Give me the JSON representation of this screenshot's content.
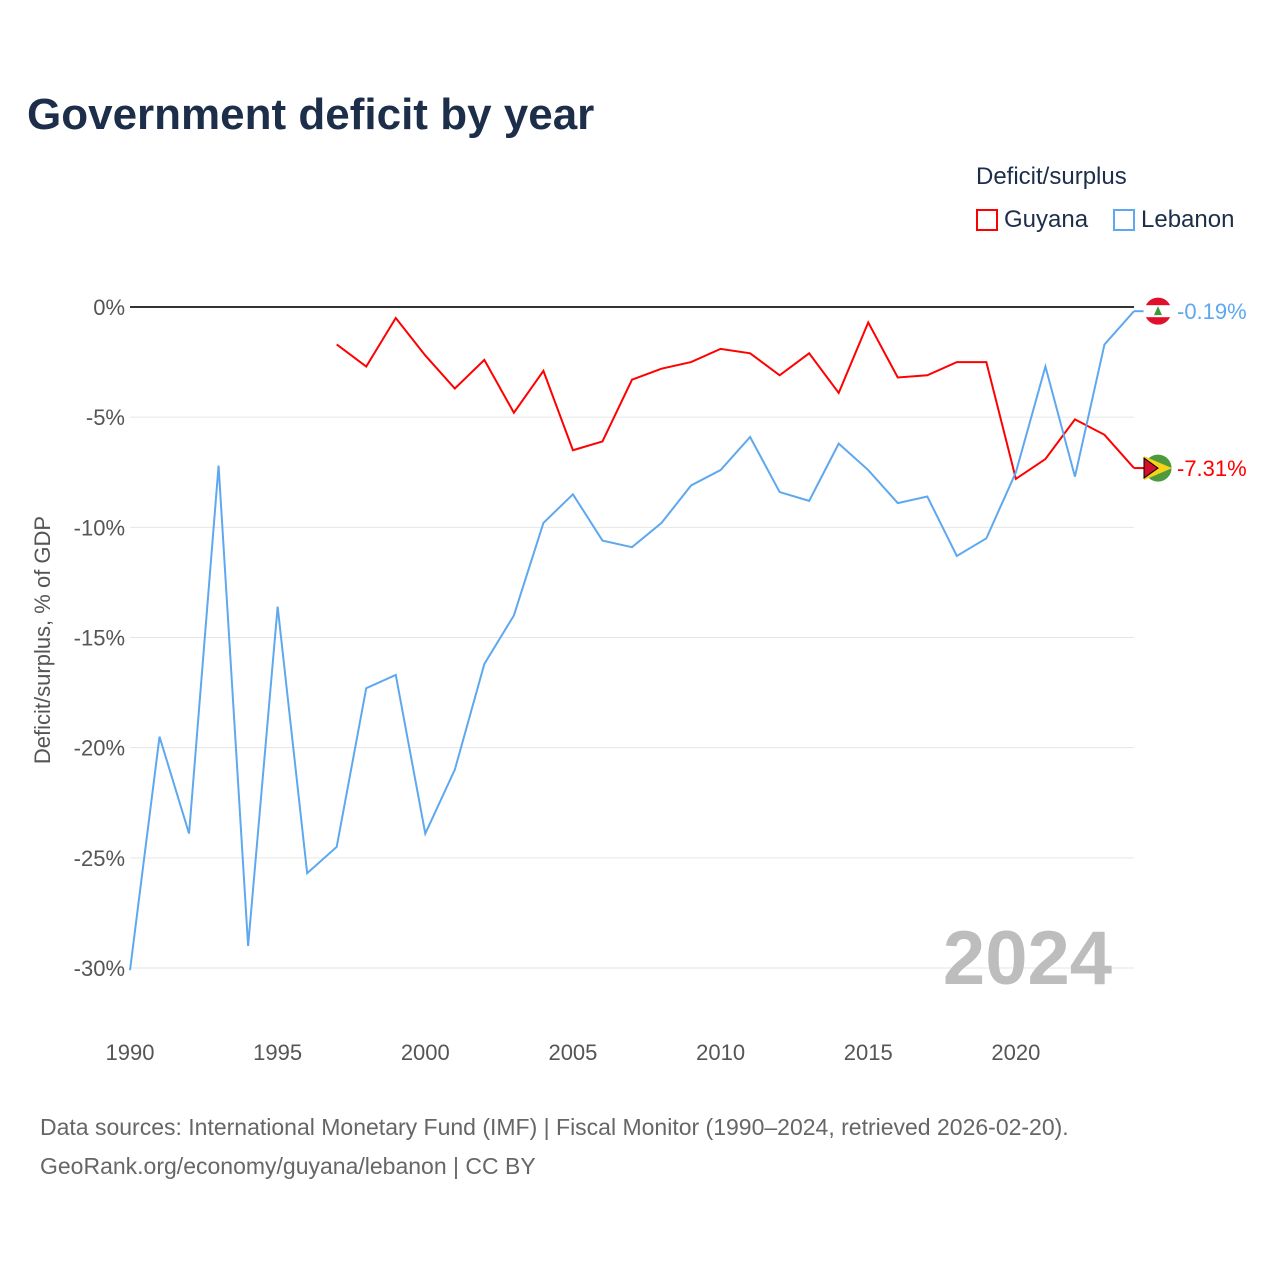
{
  "title": "Government deficit by year",
  "legend": {
    "title": "Deficit/surplus",
    "items": [
      "Guyana",
      "Lebanon"
    ]
  },
  "source": {
    "line1": "Data sources: International Monetary Fund (IMF) | Fiscal Monitor (1990–2024, retrieved 2026-02-20).",
    "line2": "GeoRank.org/economy/guyana/lebanon | CC BY"
  },
  "year_label": "2024",
  "chart_data": {
    "type": "line",
    "title": "Government deficit by year",
    "ylabel": "Deficit/surplus, % of GDP",
    "xlabel": "",
    "xlim": [
      1990,
      2024
    ],
    "ylim": [
      -30,
      0
    ],
    "xticks": [
      1990,
      1995,
      2000,
      2005,
      2010,
      2015,
      2020
    ],
    "yticks": [
      0,
      -5,
      -10,
      -15,
      -20,
      -25,
      -30
    ],
    "ytick_labels": [
      "0%",
      "-5%",
      "-10%",
      "-15%",
      "-20%",
      "-25%",
      "-30%"
    ],
    "series": [
      {
        "name": "Guyana",
        "color": "#ff0000",
        "end_label": "-7.31%",
        "x": [
          1997,
          1998,
          1999,
          2000,
          2001,
          2002,
          2003,
          2004,
          2005,
          2006,
          2007,
          2008,
          2009,
          2010,
          2011,
          2012,
          2013,
          2014,
          2015,
          2016,
          2017,
          2018,
          2019,
          2020,
          2021,
          2022,
          2023,
          2024
        ],
        "values": [
          -1.7,
          -2.7,
          -0.5,
          -2.2,
          -3.7,
          -2.4,
          -4.8,
          -2.9,
          -6.5,
          -6.1,
          -3.3,
          -2.8,
          -2.5,
          -1.9,
          -2.1,
          -3.1,
          -2.1,
          -3.9,
          -0.7,
          -3.2,
          -3.1,
          -2.5,
          -2.5,
          -7.8,
          -6.9,
          -5.1,
          -5.8,
          -7.31
        ]
      },
      {
        "name": "Lebanon",
        "color": "#5ea8ef",
        "end_label": "-0.19%",
        "x": [
          1990,
          1991,
          1992,
          1993,
          1994,
          1995,
          1996,
          1997,
          1998,
          1999,
          2000,
          2001,
          2002,
          2003,
          2004,
          2005,
          2006,
          2007,
          2008,
          2009,
          2010,
          2011,
          2012,
          2013,
          2014,
          2015,
          2016,
          2017,
          2018,
          2019,
          2020,
          2021,
          2022,
          2023,
          2024
        ],
        "values": [
          -30.1,
          -19.5,
          -23.9,
          -7.2,
          -29.0,
          -13.6,
          -25.7,
          -24.5,
          -17.3,
          -16.7,
          -23.9,
          -21.0,
          -16.2,
          -14.0,
          -9.8,
          -8.5,
          -10.6,
          -10.9,
          -9.8,
          -8.1,
          -7.4,
          -5.9,
          -8.4,
          -8.8,
          -6.2,
          -7.4,
          -8.9,
          -8.6,
          -11.3,
          -10.5,
          -7.5,
          -2.7,
          -7.7,
          -1.7,
          -0.19
        ]
      }
    ]
  }
}
